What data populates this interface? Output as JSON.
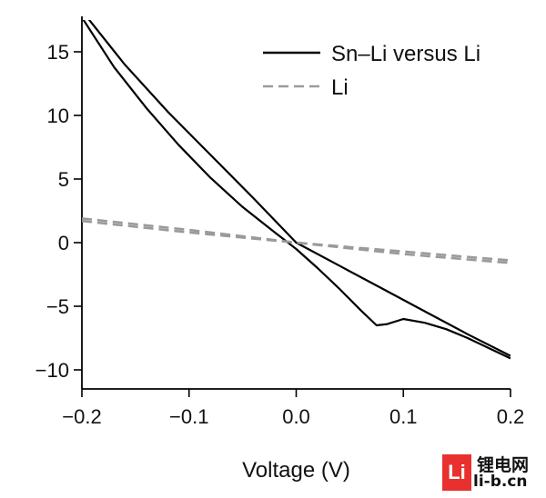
{
  "chart_data": {
    "type": "line",
    "title": "",
    "xlabel": "Voltage (V)",
    "ylabel": "",
    "xlim": [
      -0.2,
      0.2
    ],
    "ylim": [
      -11.5,
      17.5
    ],
    "x_ticks": [
      -0.2,
      -0.1,
      0.0,
      0.1,
      0.2
    ],
    "x_tick_labels": [
      "−0.2",
      "−0.1",
      "0.0",
      "0.1",
      "0.2"
    ],
    "y_ticks": [
      15,
      10,
      5,
      0,
      -5,
      -10
    ],
    "y_tick_labels": [
      "15",
      "10",
      "5",
      "0",
      "−5",
      "−10"
    ],
    "grid": false,
    "legend_position": "top-right",
    "series": [
      {
        "name": "Sn–Li versus Li",
        "color": "#000000",
        "style": "solid",
        "segments": [
          {
            "x": [
              -0.195,
              -0.16,
              -0.12,
              -0.08,
              -0.04,
              0.0,
              0.04,
              0.08,
              0.12,
              0.16,
              0.2
            ],
            "y": [
              17.7,
              14.0,
              10.3,
              6.9,
              3.5,
              0.0,
              -1.8,
              -3.6,
              -5.4,
              -7.2,
              -8.9
            ]
          },
          {
            "x": [
              -0.2,
              -0.17,
              -0.14,
              -0.11,
              -0.08,
              -0.05,
              -0.02,
              0.0,
              0.02,
              0.04,
              0.06,
              0.075,
              0.085,
              0.1,
              0.12,
              0.14,
              0.16,
              0.18,
              0.2
            ],
            "y": [
              17.7,
              13.8,
              10.6,
              7.7,
              5.1,
              2.8,
              0.8,
              -0.5,
              -2.0,
              -3.6,
              -5.3,
              -6.5,
              -6.4,
              -6.0,
              -6.3,
              -6.8,
              -7.5,
              -8.3,
              -9.1
            ]
          }
        ]
      },
      {
        "name": "Li",
        "color": "#9a9a9a",
        "style": "dashed",
        "segments": [
          {
            "x": [
              -0.2,
              -0.1,
              0.0,
              0.1,
              0.2
            ],
            "y": [
              1.9,
              1.0,
              0.0,
              -0.9,
              -1.6
            ]
          },
          {
            "x": [
              -0.2,
              -0.1,
              0.0,
              0.1,
              0.2
            ],
            "y": [
              1.7,
              0.8,
              0.0,
              -0.7,
              -1.4
            ]
          }
        ]
      }
    ]
  },
  "watermark": {
    "logo_text": "Li",
    "chinese_text": "锂电网",
    "url_text": "li-b.cn"
  }
}
